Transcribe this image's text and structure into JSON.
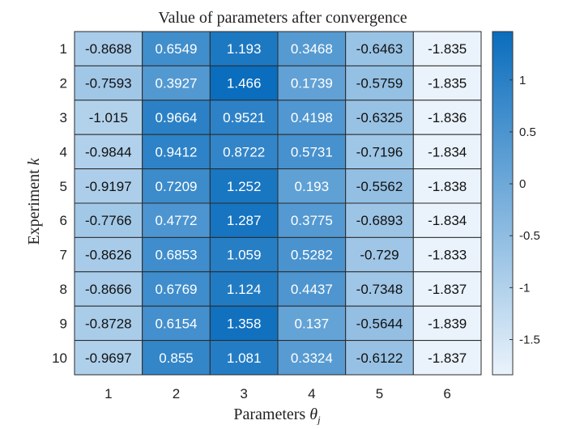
{
  "chart_data": {
    "type": "heatmap",
    "title": "Value of parameters after convergence",
    "xlabel_text": "Parameters",
    "xlabel_symbol": "θ",
    "xlabel_subscript": "j",
    "ylabel_text": "Experiment",
    "ylabel_symbol": "k",
    "x_categories": [
      "1",
      "2",
      "3",
      "4",
      "5",
      "6"
    ],
    "y_categories": [
      "1",
      "2",
      "3",
      "4",
      "5",
      "6",
      "7",
      "8",
      "9",
      "10"
    ],
    "values": [
      [
        -0.8688,
        0.6549,
        1.193,
        0.3468,
        -0.6463,
        -1.835
      ],
      [
        -0.7593,
        0.3927,
        1.466,
        0.1739,
        -0.5759,
        -1.835
      ],
      [
        -1.015,
        0.9664,
        0.9521,
        0.4198,
        -0.6325,
        -1.836
      ],
      [
        -0.9844,
        0.9412,
        0.8722,
        0.5731,
        -0.7196,
        -1.834
      ],
      [
        -0.9197,
        0.7209,
        1.252,
        0.193,
        -0.5562,
        -1.838
      ],
      [
        -0.7766,
        0.4772,
        1.287,
        0.3775,
        -0.6893,
        -1.834
      ],
      [
        -0.8626,
        0.6853,
        1.059,
        0.5282,
        -0.729,
        -1.833
      ],
      [
        -0.8666,
        0.6769,
        1.124,
        0.4437,
        -0.7348,
        -1.837
      ],
      [
        -0.8728,
        0.6154,
        1.358,
        0.137,
        -0.5644,
        -1.839
      ],
      [
        -0.9697,
        0.855,
        1.081,
        0.3324,
        -0.6122,
        -1.837
      ]
    ],
    "value_labels": [
      [
        "-0.8688",
        "0.6549",
        "1.193",
        "0.3468",
        "-0.6463",
        "-1.835"
      ],
      [
        "-0.7593",
        "0.3927",
        "1.466",
        "0.1739",
        "-0.5759",
        "-1.835"
      ],
      [
        "-1.015",
        "0.9664",
        "0.9521",
        "0.4198",
        "-0.6325",
        "-1.836"
      ],
      [
        "-0.9844",
        "0.9412",
        "0.8722",
        "0.5731",
        "-0.7196",
        "-1.834"
      ],
      [
        "-0.9197",
        "0.7209",
        "1.252",
        "0.193",
        "-0.5562",
        "-1.838"
      ],
      [
        "-0.7766",
        "0.4772",
        "1.287",
        "0.3775",
        "-0.6893",
        "-1.834"
      ],
      [
        "-0.8626",
        "0.6853",
        "1.059",
        "0.5282",
        "-0.729",
        "-1.833"
      ],
      [
        "-0.8666",
        "0.6769",
        "1.124",
        "0.4437",
        "-0.7348",
        "-1.837"
      ],
      [
        "-0.8728",
        "0.6154",
        "1.358",
        "0.137",
        "-0.5644",
        "-1.839"
      ],
      [
        "-0.9697",
        "0.855",
        "1.081",
        "0.3324",
        "-0.6122",
        "-1.837"
      ]
    ],
    "colorbar": {
      "min": -1.839,
      "max": 1.466,
      "ticks": [
        -1.5,
        -1,
        -0.5,
        0,
        0.5,
        1
      ],
      "tick_labels": [
        "-1.5",
        "-1",
        "-0.5",
        "0",
        "0.5",
        "1"
      ],
      "color_low": "#eaf3fb",
      "color_high": "#0a6dbd",
      "position": "right"
    },
    "text_color_dark": "#111111",
    "text_color_light": "#ffffff",
    "grid": true
  }
}
